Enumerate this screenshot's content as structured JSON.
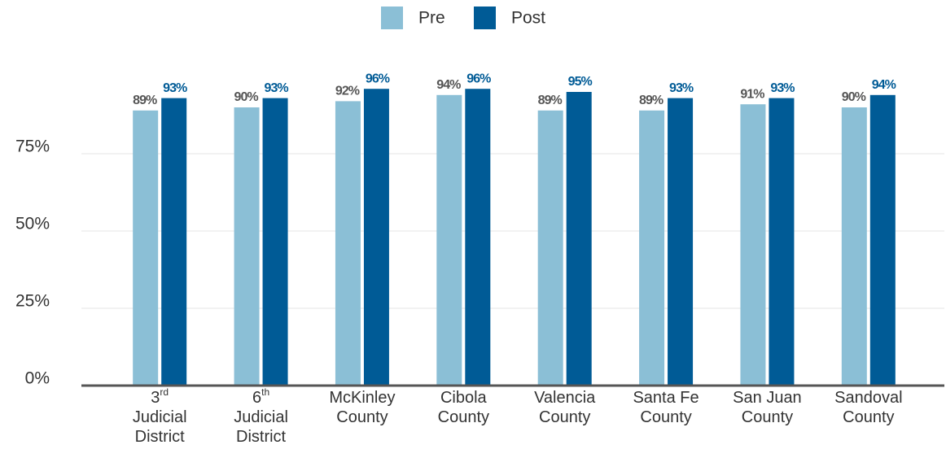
{
  "chart_data": {
    "type": "bar",
    "categories": [
      "3rd Judicial District",
      "6th Judicial District",
      "McKinley County",
      "Cibola County",
      "Valencia County",
      "Santa Fe County",
      "San Juan County",
      "Sandoval County"
    ],
    "series": [
      {
        "name": "Pre",
        "color": "#8bbfd6",
        "values": [
          89,
          90,
          92,
          94,
          89,
          89,
          91,
          90
        ],
        "value_labels": [
          "89%",
          "90%",
          "92%",
          "94%",
          "89%",
          "89%",
          "91%",
          "90%"
        ]
      },
      {
        "name": "Post",
        "color": "#005b96",
        "values": [
          93,
          93,
          96,
          96,
          95,
          93,
          93,
          94
        ],
        "value_labels": [
          "93%",
          "93%",
          "96%",
          "96%",
          "95%",
          "93%",
          "93%",
          "94%"
        ]
      }
    ],
    "ylim": [
      0,
      100
    ],
    "yticks": [
      {
        "value": 0,
        "label": "0%"
      },
      {
        "value": 25,
        "label": "25%"
      },
      {
        "value": 50,
        "label": "50%"
      },
      {
        "value": 75,
        "label": "75%"
      }
    ],
    "grid": true,
    "legend": "top"
  }
}
